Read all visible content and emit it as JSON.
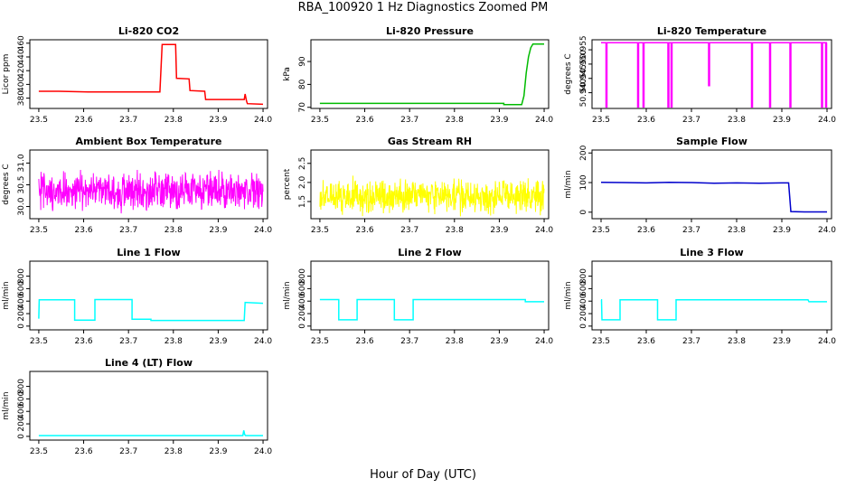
{
  "figure": {
    "title": "RBA_100920  1 Hz Diagnostics Zoomed PM",
    "xlabel": "Hour of Day (UTC)"
  },
  "chart_data": [
    {
      "type": "line",
      "title": "Li-820 CO2",
      "ylabel": "Licor ppm",
      "color": "#ff0000",
      "xlim": [
        23.48,
        24.01
      ],
      "ylim": [
        365,
        465
      ],
      "xticks": [
        "23.5",
        "23.6",
        "23.7",
        "23.8",
        "23.9",
        "24.0"
      ],
      "yticks": [
        "380",
        "400",
        "420",
        "440",
        "460"
      ],
      "x": [
        23.5,
        23.545,
        23.61,
        23.65,
        23.7,
        23.75,
        23.77,
        23.775,
        23.79,
        23.805,
        23.807,
        23.835,
        23.837,
        23.87,
        23.872,
        23.958,
        23.96,
        23.963,
        23.965,
        24.0
      ],
      "y": [
        390,
        390,
        389,
        389,
        389,
        389,
        389,
        458,
        458,
        458,
        409,
        408,
        391,
        390,
        378,
        378,
        386,
        376,
        372,
        371
      ]
    },
    {
      "type": "line",
      "title": "Li-820 Pressure",
      "ylabel": "kPa",
      "color": "#00bb00",
      "xlim": [
        23.48,
        24.01
      ],
      "ylim": [
        69.5,
        99.5
      ],
      "xticks": [
        "23.5",
        "23.6",
        "23.7",
        "23.8",
        "23.9",
        "24.0"
      ],
      "yticks": [
        "70",
        "80",
        "90"
      ],
      "x": [
        23.5,
        23.6,
        23.7,
        23.8,
        23.9,
        23.91,
        23.91,
        23.95,
        23.955,
        23.96,
        23.965,
        23.97,
        23.975,
        24.0
      ],
      "y": [
        71.7,
        71.7,
        71.7,
        71.7,
        71.7,
        71.7,
        71.2,
        71.2,
        75,
        85,
        92,
        96,
        97.6,
        97.6
      ]
    },
    {
      "type": "line",
      "title": "Li-820 Temperature",
      "ylabel": "degrees C",
      "color": "#ff00ff",
      "xlim": [
        23.48,
        24.01
      ],
      "ylim": [
        50.9345,
        50.9585
      ],
      "xticks": [
        "23.5",
        "23.6",
        "23.7",
        "23.8",
        "23.9",
        "24.0"
      ],
      "yticks": [
        "50.940",
        "50.945",
        "50.950",
        "50.955"
      ],
      "x": [
        23.5,
        23.511,
        23.511,
        23.513,
        23.513,
        23.581,
        23.581,
        23.583,
        23.583,
        23.593,
        23.593,
        23.595,
        23.595,
        23.648,
        23.648,
        23.65,
        23.65,
        23.655,
        23.655,
        23.657,
        23.657,
        23.738,
        23.738,
        23.74,
        23.74,
        23.833,
        23.833,
        23.835,
        23.835,
        23.873,
        23.873,
        23.875,
        23.875,
        23.918,
        23.918,
        23.92,
        23.92,
        23.988,
        23.988,
        23.99,
        23.99,
        23.997,
        23.997,
        23.999,
        23.999,
        24.0
      ],
      "y": [
        50.9575,
        50.9575,
        50.935,
        50.935,
        50.9575,
        50.9575,
        50.935,
        50.935,
        50.9575,
        50.9575,
        50.935,
        50.935,
        50.9575,
        50.9575,
        50.935,
        50.935,
        50.9575,
        50.9575,
        50.935,
        50.935,
        50.9575,
        50.9575,
        50.9425,
        50.9425,
        50.9575,
        50.9575,
        50.935,
        50.935,
        50.9575,
        50.9575,
        50.935,
        50.935,
        50.9575,
        50.9575,
        50.935,
        50.935,
        50.9575,
        50.9575,
        50.935,
        50.935,
        50.9575,
        50.9575,
        50.935,
        50.935,
        50.9575,
        50.9575
      ]
    },
    {
      "type": "line",
      "title": "Ambient Box Temperature",
      "ylabel": "degrees C",
      "color": "#ff00ff",
      "xlim": [
        23.48,
        24.01
      ],
      "ylim": [
        29.72,
        31.3
      ],
      "xticks": [
        "23.5",
        "23.6",
        "23.7",
        "23.8",
        "23.9",
        "24.0"
      ],
      "yticks": [
        "30.0",
        "30.5",
        "31.0"
      ],
      "noise": {
        "center": 30.35,
        "spread": 0.55,
        "points": 700
      }
    },
    {
      "type": "line",
      "title": "Gas Stream RH",
      "ylabel": "percent",
      "color": "#ffff00",
      "xlim": [
        23.48,
        24.01
      ],
      "ylim": [
        1.05,
        2.85
      ],
      "xticks": [
        "23.5",
        "23.6",
        "23.7",
        "23.8",
        "23.9",
        "24.0"
      ],
      "yticks": [
        "1.5",
        "2.0",
        "2.5"
      ],
      "noise": {
        "center": 1.65,
        "spread": 0.55,
        "points": 700
      }
    },
    {
      "type": "line",
      "title": "Sample Flow",
      "ylabel": "ml/min",
      "color": "#0000cc",
      "xlim": [
        23.48,
        24.01
      ],
      "ylim": [
        -22,
        210
      ],
      "xticks": [
        "23.5",
        "23.6",
        "23.7",
        "23.8",
        "23.9",
        "24.0"
      ],
      "yticks": [
        "0",
        "100",
        "200"
      ],
      "x": [
        23.5,
        23.55,
        23.6,
        23.65,
        23.7,
        23.75,
        23.8,
        23.85,
        23.9,
        23.915,
        23.92,
        23.95,
        24.0
      ],
      "y": [
        101,
        100,
        99,
        101,
        100,
        98,
        99,
        98,
        99,
        99,
        2,
        1,
        1
      ]
    },
    {
      "type": "line",
      "title": "Line 1 Flow",
      "ylabel": "ml/min",
      "color": "#00ffff",
      "xlim": [
        23.48,
        24.01
      ],
      "ylim": [
        -60,
        1040
      ],
      "xticks": [
        "23.5",
        "23.6",
        "23.7",
        "23.8",
        "23.9",
        "24.0"
      ],
      "yticks": [
        "0",
        "200",
        "400",
        "600",
        "800"
      ],
      "x": [
        23.5,
        23.501,
        23.502,
        23.58,
        23.58,
        23.625,
        23.625,
        23.708,
        23.708,
        23.75,
        23.75,
        23.958,
        23.96,
        24.0
      ],
      "y": [
        120,
        420,
        420,
        420,
        95,
        95,
        425,
        425,
        110,
        110,
        90,
        90,
        380,
        365
      ]
    },
    {
      "type": "line",
      "title": "Line 2 Flow",
      "ylabel": "ml/min",
      "color": "#00ffff",
      "xlim": [
        23.48,
        24.01
      ],
      "ylim": [
        -60,
        1040
      ],
      "xticks": [
        "23.5",
        "23.6",
        "23.7",
        "23.8",
        "23.9",
        "24.0"
      ],
      "yticks": [
        "0",
        "200",
        "400",
        "600",
        "800"
      ],
      "x": [
        23.5,
        23.542,
        23.542,
        23.583,
        23.583,
        23.666,
        23.666,
        23.708,
        23.708,
        23.958,
        23.958,
        24.0
      ],
      "y": [
        425,
        425,
        100,
        100,
        425,
        425,
        100,
        100,
        425,
        425,
        390,
        390
      ]
    },
    {
      "type": "line",
      "title": "Line 3 Flow",
      "ylabel": "ml/min",
      "color": "#00ffff",
      "xlim": [
        23.48,
        24.01
      ],
      "ylim": [
        -60,
        1040
      ],
      "xticks": [
        "23.5",
        "23.6",
        "23.7",
        "23.8",
        "23.9",
        "24.0"
      ],
      "yticks": [
        "0",
        "200",
        "400",
        "600",
        "800"
      ],
      "x": [
        23.5,
        23.501,
        23.502,
        23.542,
        23.542,
        23.625,
        23.625,
        23.666,
        23.666,
        23.958,
        23.96,
        24.0
      ],
      "y": [
        420,
        420,
        100,
        100,
        420,
        420,
        100,
        100,
        420,
        420,
        390,
        390
      ]
    },
    {
      "type": "line",
      "title": "Line 4 (LT) Flow",
      "ylabel": "ml/min",
      "color": "#00ffff",
      "xlim": [
        23.48,
        24.01
      ],
      "ylim": [
        -60,
        1040
      ],
      "xticks": [
        "23.5",
        "23.6",
        "23.7",
        "23.8",
        "23.9",
        "24.0"
      ],
      "yticks": [
        "0",
        "200",
        "400",
        "600",
        "800"
      ],
      "x": [
        23.5,
        23.6,
        23.7,
        23.8,
        23.9,
        23.955,
        23.957,
        23.959,
        23.961,
        24.0
      ],
      "y": [
        12,
        12,
        12,
        12,
        12,
        12,
        95,
        30,
        12,
        12
      ]
    }
  ]
}
